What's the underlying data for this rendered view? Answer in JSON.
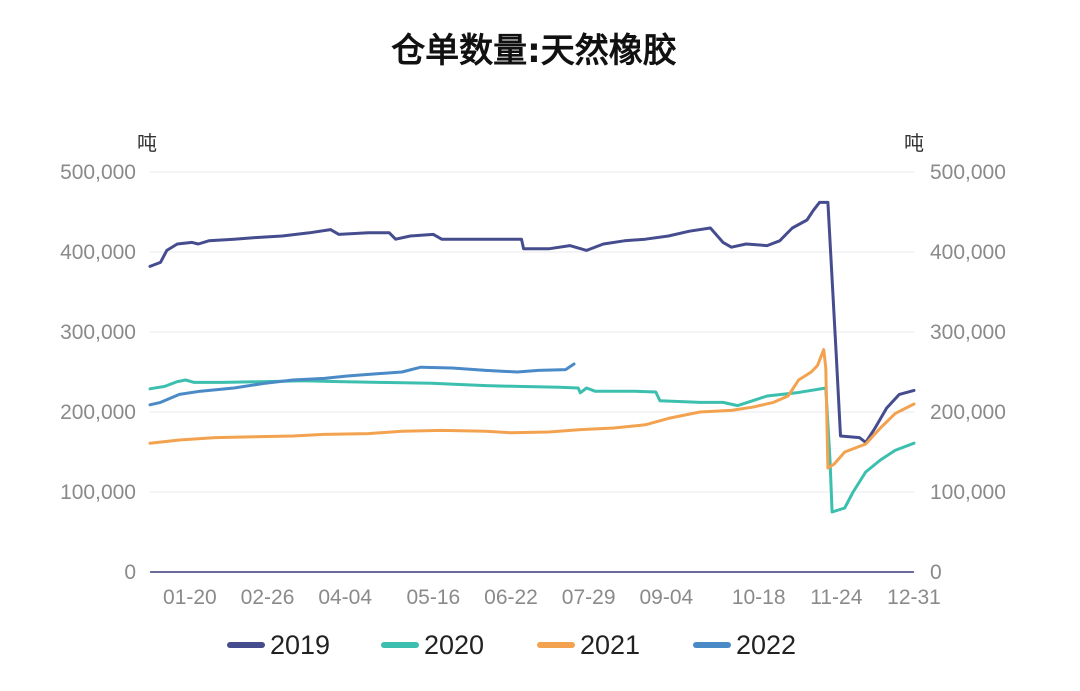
{
  "chart_data": {
    "type": "line",
    "title": "仓单数量:天然橡胶",
    "ylabel_left": "吨",
    "ylabel_right": "吨",
    "ylim": [
      0,
      500000
    ],
    "yticks": [
      0,
      100000,
      200000,
      300000,
      400000,
      500000
    ],
    "yticks_labels": [
      "0",
      "100,000",
      "200,000",
      "300,000",
      "400,000",
      "500,000"
    ],
    "xlim": [
      "01-01",
      "12-31"
    ],
    "x_ticks": [
      "01-20",
      "02-26",
      "04-04",
      "05-16",
      "06-22",
      "07-29",
      "09-04",
      "10-18",
      "11-24",
      "12-31"
    ],
    "grid": true,
    "legend_position": "bottom",
    "series": [
      {
        "name": "2019",
        "color": "#464d8e",
        "points": [
          [
            "01-01",
            382000
          ],
          [
            "01-06",
            387000
          ],
          [
            "01-09",
            402000
          ],
          [
            "01-14",
            410000
          ],
          [
            "01-21",
            412000
          ],
          [
            "01-24",
            410000
          ],
          [
            "01-29",
            414000
          ],
          [
            "02-10",
            416000
          ],
          [
            "02-20",
            418000
          ],
          [
            "03-05",
            420000
          ],
          [
            "03-18",
            424000
          ],
          [
            "03-28",
            428000
          ],
          [
            "04-01",
            422000
          ],
          [
            "04-15",
            424000
          ],
          [
            "04-25",
            424000
          ],
          [
            "04-28",
            416000
          ],
          [
            "05-05",
            420000
          ],
          [
            "05-16",
            422000
          ],
          [
            "05-20",
            416000
          ],
          [
            "06-01",
            416000
          ],
          [
            "06-15",
            416000
          ],
          [
            "06-27",
            416000
          ],
          [
            "06-28",
            404000
          ],
          [
            "07-10",
            404000
          ],
          [
            "07-20",
            408000
          ],
          [
            "07-28",
            402000
          ],
          [
            "08-05",
            410000
          ],
          [
            "08-15",
            414000
          ],
          [
            "08-25",
            416000
          ],
          [
            "09-05",
            420000
          ],
          [
            "09-15",
            426000
          ],
          [
            "09-25",
            430000
          ],
          [
            "10-01",
            412000
          ],
          [
            "10-05",
            406000
          ],
          [
            "10-12",
            410000
          ],
          [
            "10-22",
            408000
          ],
          [
            "10-28",
            414000
          ],
          [
            "11-03",
            430000
          ],
          [
            "11-10",
            440000
          ],
          [
            "11-13",
            452000
          ],
          [
            "11-16",
            462000
          ],
          [
            "11-20",
            462000
          ],
          [
            "11-24",
            270000
          ],
          [
            "11-26",
            170000
          ],
          [
            "12-05",
            168000
          ],
          [
            "12-08",
            162000
          ],
          [
            "12-12",
            178000
          ],
          [
            "12-18",
            205000
          ],
          [
            "12-24",
            222000
          ],
          [
            "12-31",
            227000
          ]
        ]
      },
      {
        "name": "2020",
        "color": "#3cbfae",
        "points": [
          [
            "01-01",
            229000
          ],
          [
            "01-08",
            232000
          ],
          [
            "01-14",
            238000
          ],
          [
            "01-18",
            240000
          ],
          [
            "01-22",
            237000
          ],
          [
            "02-05",
            237000
          ],
          [
            "02-25",
            238000
          ],
          [
            "03-15",
            239000
          ],
          [
            "04-01",
            238000
          ],
          [
            "04-20",
            237000
          ],
          [
            "05-15",
            236000
          ],
          [
            "06-10",
            233000
          ],
          [
            "06-25",
            232000
          ],
          [
            "07-15",
            231000
          ],
          [
            "07-24",
            230000
          ],
          [
            "07-25",
            224000
          ],
          [
            "07-28",
            230000
          ],
          [
            "08-01",
            226000
          ],
          [
            "08-20",
            226000
          ],
          [
            "08-30",
            225000
          ],
          [
            "09-01",
            214000
          ],
          [
            "09-20",
            212000
          ],
          [
            "10-01",
            212000
          ],
          [
            "10-08",
            208000
          ],
          [
            "10-15",
            214000
          ],
          [
            "10-22",
            220000
          ],
          [
            "11-05",
            224000
          ],
          [
            "11-19",
            230000
          ],
          [
            "11-21",
            140000
          ],
          [
            "11-22",
            75000
          ],
          [
            "11-28",
            80000
          ],
          [
            "12-02",
            100000
          ],
          [
            "12-08",
            125000
          ],
          [
            "12-15",
            140000
          ],
          [
            "12-22",
            152000
          ],
          [
            "12-31",
            161000
          ]
        ]
      },
      {
        "name": "2021",
        "color": "#f3a250",
        "points": [
          [
            "01-01",
            161000
          ],
          [
            "01-15",
            165000
          ],
          [
            "02-01",
            168000
          ],
          [
            "02-20",
            169000
          ],
          [
            "03-10",
            170000
          ],
          [
            "03-25",
            172000
          ],
          [
            "04-15",
            173000
          ],
          [
            "05-01",
            176000
          ],
          [
            "05-20",
            177000
          ],
          [
            "06-10",
            176000
          ],
          [
            "06-22",
            174000
          ],
          [
            "07-10",
            175000
          ],
          [
            "07-25",
            178000
          ],
          [
            "08-10",
            180000
          ],
          [
            "08-25",
            184000
          ],
          [
            "09-05",
            192000
          ],
          [
            "09-20",
            200000
          ],
          [
            "10-05",
            202000
          ],
          [
            "10-15",
            206000
          ],
          [
            "10-25",
            212000
          ],
          [
            "11-01",
            220000
          ],
          [
            "11-06",
            240000
          ],
          [
            "11-12",
            250000
          ],
          [
            "11-15",
            258000
          ],
          [
            "11-18",
            278000
          ],
          [
            "11-19",
            255000
          ],
          [
            "11-20",
            130000
          ],
          [
            "11-23",
            135000
          ],
          [
            "11-28",
            150000
          ],
          [
            "12-08",
            160000
          ],
          [
            "12-15",
            180000
          ],
          [
            "12-22",
            198000
          ],
          [
            "12-31",
            210000
          ]
        ]
      },
      {
        "name": "2022",
        "color": "#4a8ac7",
        "points": [
          [
            "01-01",
            209000
          ],
          [
            "01-06",
            212000
          ],
          [
            "01-15",
            222000
          ],
          [
            "01-25",
            226000
          ],
          [
            "02-10",
            230000
          ],
          [
            "02-25",
            236000
          ],
          [
            "03-10",
            240000
          ],
          [
            "03-25",
            242000
          ],
          [
            "04-05",
            245000
          ],
          [
            "04-20",
            248000
          ],
          [
            "05-01",
            250000
          ],
          [
            "05-10",
            256000
          ],
          [
            "05-25",
            255000
          ],
          [
            "06-10",
            252000
          ],
          [
            "06-25",
            250000
          ],
          [
            "07-05",
            252000
          ],
          [
            "07-18",
            253000
          ],
          [
            "07-22",
            260000
          ]
        ]
      }
    ]
  }
}
